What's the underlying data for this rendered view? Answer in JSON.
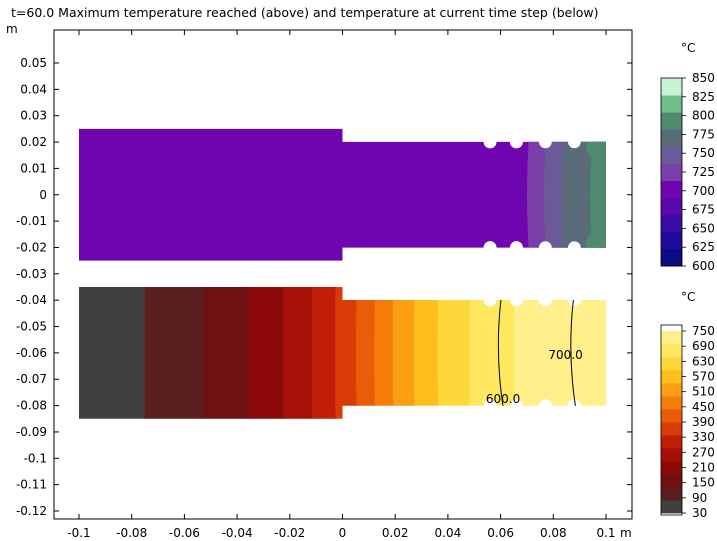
{
  "title": "t=60.0 Maximum temperature reached (above) and temperature at current time step (below)",
  "chart_data": {
    "type": "heatmap",
    "title": "t=60.0 Maximum temperature reached (above) and temperature at current time step (below)",
    "x_unit": "m",
    "y_unit": "m",
    "xlim": [
      -0.1,
      0.1
    ],
    "ylim": [
      -0.12,
      0.05
    ],
    "x_ticks": [
      "-0.1",
      "-0.08",
      "-0.06",
      "-0.04",
      "-0.02",
      "0",
      "0.02",
      "0.04",
      "0.06",
      "0.08",
      "0.1"
    ],
    "y_ticks": [
      "0.05",
      "0.04",
      "0.03",
      "0.02",
      "0.01",
      "0",
      "-0.01",
      "-0.02",
      "-0.03",
      "-0.04",
      "-0.05",
      "-0.06",
      "-0.07",
      "-0.08",
      "-0.09",
      "-0.1",
      "-0.11",
      "-0.12"
    ],
    "upper_plot": {
      "description_shown": "Maximum temperature reached",
      "y_range": [
        -0.025,
        0.025
      ],
      "colorbar": {
        "unit": "°C",
        "min": 600,
        "max": 850,
        "labels": [
          "850",
          "825",
          "800",
          "775",
          "750",
          "725",
          "700",
          "675",
          "650",
          "625",
          "600"
        ],
        "colors": [
          "#0b0b86",
          "#200c9a",
          "#3a0aa8",
          "#5a08ad",
          "#6f05b0",
          "#7a3fa8",
          "#6b5a9a",
          "#5a6b7a",
          "#4e8a6e",
          "#6fbf8a",
          "#c8f2d2"
        ]
      }
    },
    "lower_plot": {
      "description_shown": "temperature at current time step",
      "y_range": [
        -0.085,
        -0.035
      ],
      "colorbar": {
        "unit": "°C",
        "min": 30,
        "max": 750,
        "labels": [
          "750",
          "690",
          "630",
          "570",
          "510",
          "450",
          "390",
          "330",
          "270",
          "210",
          "150",
          "90",
          "30"
        ],
        "colors": [
          "#404040",
          "#5a1f1f",
          "#701010",
          "#8c0a0a",
          "#a51007",
          "#c01e06",
          "#d93b06",
          "#ea5c08",
          "#f57d0c",
          "#fb9e12",
          "#fdbf1a",
          "#fed83a",
          "#ffe860",
          "#fff08c"
        ]
      },
      "contours": [
        {
          "label": "600.0",
          "x": 0.0605
        },
        {
          "label": "700.0",
          "x": 0.088
        }
      ]
    }
  }
}
